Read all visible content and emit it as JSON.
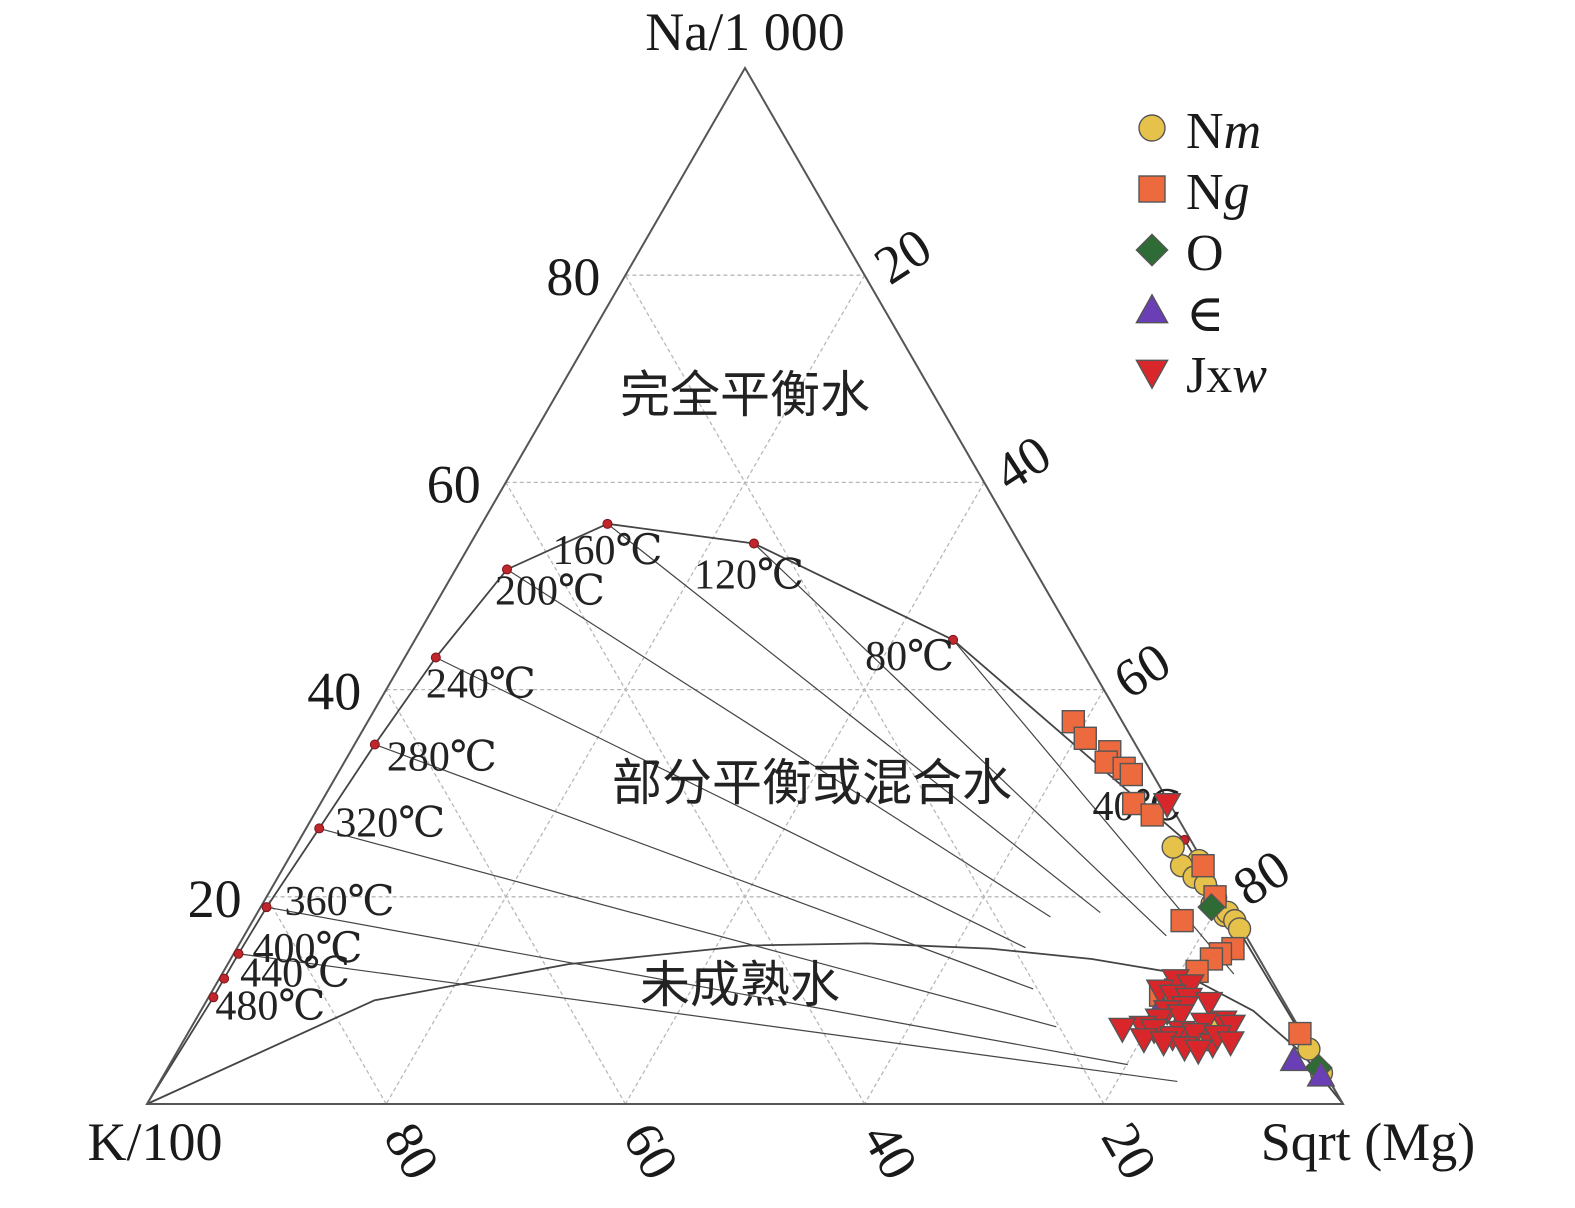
{
  "chart_data": {
    "type": "ternary",
    "vertices": {
      "top": "Na/1 000",
      "left": "K/100",
      "right": "Sqrt (Mg)"
    },
    "ticks": {
      "left_edge": [
        "20",
        "40",
        "60",
        "80"
      ],
      "right_edge": [
        "20",
        "40",
        "60",
        "80"
      ],
      "bottom_edge": [
        "80",
        "60",
        "40",
        "20"
      ]
    },
    "regions": [
      "完全平衡水",
      "部分平衡或混合水",
      "未成熟水"
    ],
    "grid": true,
    "legend_position": "top-right",
    "legend": [
      {
        "label": "Nm",
        "label_main": "N",
        "label_ital": "m",
        "marker": "circle",
        "color": "#e6c24a"
      },
      {
        "label": "Ng",
        "label_main": "N",
        "label_ital": "g",
        "marker": "square",
        "color": "#ec6a3e"
      },
      {
        "label": "O",
        "label_main": "O",
        "label_ital": "",
        "marker": "diamond",
        "color": "#2e6b35"
      },
      {
        "label": "∈",
        "label_main": "∈",
        "label_ital": "",
        "marker": "triangle-up",
        "color": "#6a3fb5"
      },
      {
        "label": "Jxw",
        "label_main": "Jx",
        "label_ital": "w",
        "marker": "triangle-down",
        "color": "#d9262a"
      }
    ],
    "equilibrium_temps": [
      {
        "label": "480℃",
        "na": 10.3,
        "k": 89.3
      },
      {
        "label": "440℃",
        "na": 12.1,
        "k": 87.5
      },
      {
        "label": "400℃",
        "na": 14.5,
        "k": 85.1
      },
      {
        "label": "360℃",
        "na": 19.0,
        "k": 80.5
      },
      {
        "label": "320℃",
        "na": 26.6,
        "k": 72.3
      },
      {
        "label": "280℃",
        "na": 34.7,
        "k": 63.6
      },
      {
        "label": "240℃",
        "na": 43.1,
        "k": 54.3
      },
      {
        "label": "200℃",
        "na": 51.6,
        "k": 44.1
      },
      {
        "label": "160℃",
        "na": 56.0,
        "k": 33.5
      },
      {
        "label": "120℃",
        "na": 54.1,
        "k": 22.2
      },
      {
        "label": "80℃",
        "na": 44.8,
        "k": 10.2
      },
      {
        "label": "40℃",
        "na": 25.5,
        "k": 0.5
      }
    ],
    "series": [
      {
        "name": "Nm",
        "points": [
          {
            "na": 23.5,
            "k": 0.3
          },
          {
            "na": 23.0,
            "k": 2.0
          },
          {
            "na": 21.9,
            "k": 1.5
          },
          {
            "na": 21.2,
            "k": 0.9
          },
          {
            "na": 19.9,
            "k": 0.7
          },
          {
            "na": 19.3,
            "k": 1.3
          },
          {
            "na": 18.2,
            "k": 0.8
          },
          {
            "na": 18.5,
            "k": 0.4
          },
          {
            "na": 17.7,
            "k": 0.2
          },
          {
            "na": 16.9,
            "k": 0.2
          },
          {
            "na": 24.8,
            "k": 1.8
          },
          {
            "na": 5.3,
            "k": 0.2
          },
          {
            "na": 3.0,
            "k": 0.3
          },
          {
            "na": 7.2,
            "k": 7.3
          },
          {
            "na": 6.2,
            "k": 8.1
          }
        ]
      },
      {
        "name": "Ng",
        "points": [
          {
            "na": 36.9,
            "k": 4.1
          },
          {
            "na": 35.3,
            "k": 3.9
          },
          {
            "na": 34.0,
            "k": 2.5
          },
          {
            "na": 33.0,
            "k": 3.3
          },
          {
            "na": 32.4,
            "k": 2.1
          },
          {
            "na": 31.8,
            "k": 1.8
          },
          {
            "na": 29.0,
            "k": 3.0
          },
          {
            "na": 27.9,
            "k": 2.0
          },
          {
            "na": 23.0,
            "k": 0.2
          },
          {
            "na": 20.0,
            "k": 0.7
          },
          {
            "na": 17.7,
            "k": 4.6
          },
          {
            "na": 15.0,
            "k": 1.7
          },
          {
            "na": 14.5,
            "k": 3.0
          },
          {
            "na": 14.0,
            "k": 4.0
          },
          {
            "na": 12.8,
            "k": 5.8
          },
          {
            "na": 6.8,
            "k": 0.2
          },
          {
            "na": 11.0,
            "k": 8.5
          },
          {
            "na": 10.5,
            "k": 10.0
          }
        ]
      },
      {
        "name": "O",
        "points": [
          {
            "na": 19.0,
            "k": 1.5
          },
          {
            "na": 3.5,
            "k": 0.3
          }
        ]
      },
      {
        "name": "∈",
        "points": [
          {
            "na": 4.2,
            "k": 2.0
          },
          {
            "na": 2.7,
            "k": 0.5
          },
          {
            "na": 9.4,
            "k": 10.5
          },
          {
            "na": 7.0,
            "k": 10.5
          }
        ]
      },
      {
        "name": "Jxw",
        "points": [
          {
            "na": 29.0,
            "k": 0.2
          },
          {
            "na": 12.0,
            "k": 8.0
          },
          {
            "na": 11.5,
            "k": 7.0
          },
          {
            "na": 11.0,
            "k": 9.8
          },
          {
            "na": 10.5,
            "k": 9.0
          },
          {
            "na": 10.2,
            "k": 7.8
          },
          {
            "na": 9.8,
            "k": 6.3
          },
          {
            "na": 9.4,
            "k": 8.5
          },
          {
            "na": 9.0,
            "k": 10.2
          },
          {
            "na": 8.6,
            "k": 9.3
          },
          {
            "na": 8.2,
            "k": 11.3
          },
          {
            "na": 8.0,
            "k": 6.0
          },
          {
            "na": 7.8,
            "k": 7.7
          },
          {
            "na": 7.5,
            "k": 13.0
          },
          {
            "na": 7.3,
            "k": 14.8
          },
          {
            "na": 7.2,
            "k": 12.2
          },
          {
            "na": 7.0,
            "k": 10.0
          },
          {
            "na": 6.8,
            "k": 9.0
          },
          {
            "na": 6.5,
            "k": 11.0
          },
          {
            "na": 6.3,
            "k": 13.5
          },
          {
            "na": 6.0,
            "k": 12.0
          },
          {
            "na": 5.8,
            "k": 8.0
          },
          {
            "na": 5.5,
            "k": 10.5
          },
          {
            "na": 7.6,
            "k": 5.5
          },
          {
            "na": 6.6,
            "k": 7.2
          },
          {
            "na": 6.0,
            "k": 6.4
          },
          {
            "na": 5.2,
            "k": 9.5
          }
        ]
      }
    ]
  }
}
